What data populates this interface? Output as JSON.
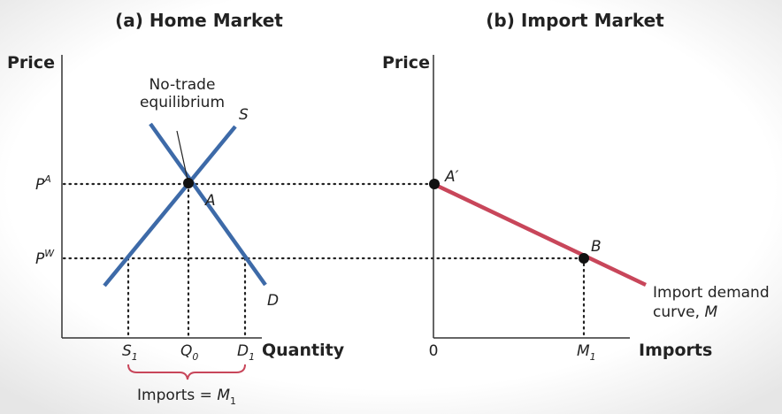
{
  "panel_a": {
    "title": "(a) Home Market",
    "y_label": "Price",
    "x_label": "Quantity",
    "annotation": [
      "No-trade",
      "equilibrium"
    ],
    "supply_label": "S",
    "demand_label": "D",
    "point_label": "A",
    "price_labels": [
      {
        "base": "P",
        "sup": "A"
      },
      {
        "base": "P",
        "sup": "W"
      }
    ],
    "quantity_labels": [
      {
        "base": "S",
        "sub": "1"
      },
      {
        "base": "Q",
        "sub": "0"
      },
      {
        "base": "D",
        "sub": "1"
      }
    ],
    "brace_label": {
      "text": "Imports = ",
      "base": "M",
      "sub": "1"
    }
  },
  "panel_b": {
    "title": "(b) Import Market",
    "y_label": "Price",
    "x_label": "Imports",
    "origin_label": "0",
    "point_labels": [
      "A′",
      "B"
    ],
    "quantity_label": {
      "base": "M",
      "sub": "1"
    },
    "curve_label": [
      "Import demand",
      "curve, ",
      "M"
    ]
  }
}
